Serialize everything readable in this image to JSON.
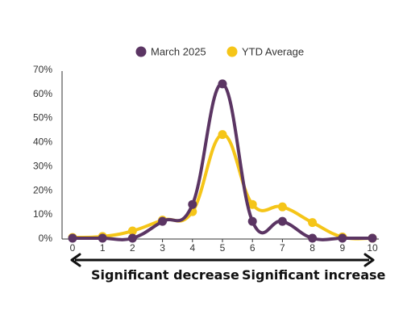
{
  "chart_data": {
    "type": "line",
    "title": "",
    "xlabel": "",
    "ylabel": "",
    "x": [
      0,
      1,
      2,
      3,
      4,
      5,
      6,
      7,
      8,
      9,
      10
    ],
    "x_tick_labels": [
      "0",
      "1",
      "2",
      "3",
      "4",
      "5",
      "6",
      "7",
      "8",
      "9",
      "10"
    ],
    "y_tick_labels": [
      "0%",
      "10%",
      "20%",
      "30%",
      "40%",
      "50%",
      "60%",
      "70%"
    ],
    "ylim": [
      0,
      70
    ],
    "y_unit": "percent",
    "grid": false,
    "legend_position": "top-center",
    "smooth": true,
    "series": [
      {
        "name": "March 2025",
        "color": "#5b3563",
        "values": [
          0,
          0,
          0,
          7,
          14,
          64,
          7,
          7,
          0,
          0,
          0
        ]
      },
      {
        "name": "YTD Average",
        "color": "#f5c518",
        "values": [
          0.3,
          0.7,
          3,
          7.5,
          11,
          43,
          14,
          13,
          6.5,
          0.5,
          0
        ]
      }
    ],
    "annotations": {
      "left_label": "Significant decrease",
      "right_label": "Significant increase"
    }
  }
}
